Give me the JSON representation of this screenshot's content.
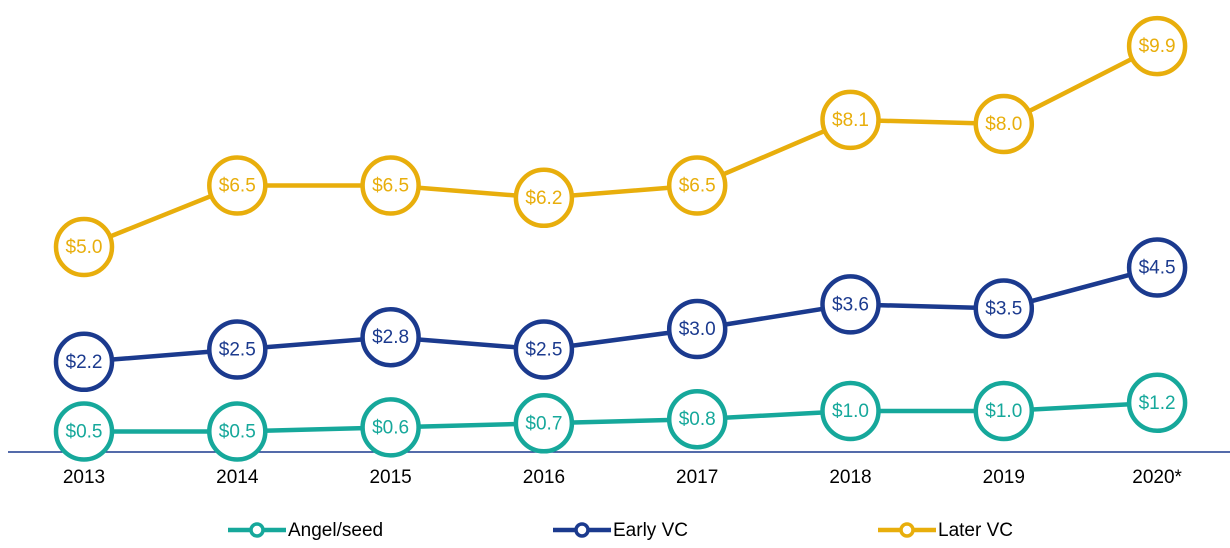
{
  "chart_data": {
    "type": "line",
    "categories": [
      "2013",
      "2014",
      "2015",
      "2016",
      "2017",
      "2018",
      "2019",
      "2020*"
    ],
    "ylim": [
      0,
      10
    ],
    "legend": "bottom",
    "series": [
      {
        "name": "Angel/seed",
        "color": "#16a89b",
        "values": [
          0.5,
          0.5,
          0.6,
          0.7,
          0.8,
          1.0,
          1.0,
          1.2
        ],
        "value_labels": [
          "$0.5",
          "$0.5",
          "$0.6",
          "$0.7",
          "$0.8",
          "$1.0",
          "$1.0",
          "$1.2"
        ]
      },
      {
        "name": "Early VC",
        "color": "#1b3a8e",
        "values": [
          2.2,
          2.5,
          2.8,
          2.5,
          3.0,
          3.6,
          3.5,
          4.5
        ],
        "value_labels": [
          "$2.2",
          "$2.5",
          "$2.8",
          "$2.5",
          "$3.0",
          "$3.6",
          "$3.5",
          "$4.5"
        ]
      },
      {
        "name": "Later VC",
        "color": "#e8ae0c",
        "values": [
          5.0,
          6.5,
          6.5,
          6.2,
          6.5,
          8.1,
          8.0,
          9.9
        ],
        "value_labels": [
          "$5.0",
          "$6.5",
          "$6.5",
          "$6.2",
          "$6.5",
          "$8.1",
          "$8.0",
          "$9.9"
        ]
      }
    ]
  }
}
